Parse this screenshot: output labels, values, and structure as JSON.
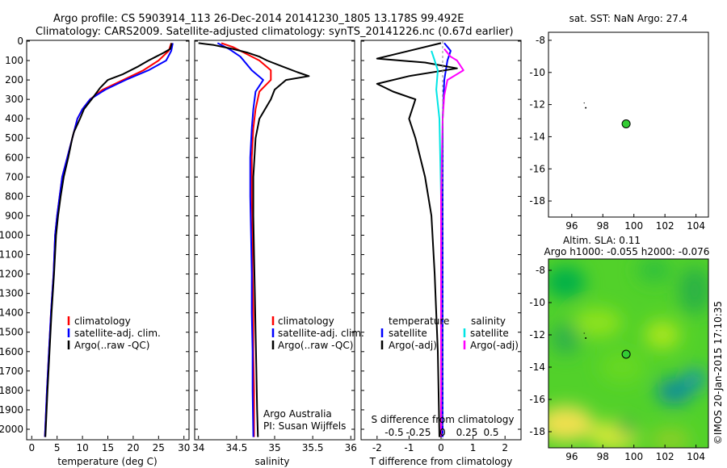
{
  "header": {
    "line1": "Argo profile: CS 5903914_113 26-Dec-2014 20141230_1805 13.178S 99.492E",
    "line2": "Climatology: CARS2009. Satellite-adjusted climatology: synTS_20141226.nc (0.67d earlier)"
  },
  "depth_ticks": [
    "0",
    "100",
    "200",
    "300",
    "400",
    "500",
    "600",
    "700",
    "800",
    "900",
    "1000",
    "1100",
    "1200",
    "1300",
    "1400",
    "1500",
    "1600",
    "1700",
    "1800",
    "1900",
    "2000"
  ],
  "colors": {
    "climatology": "#ff0000",
    "satellite": "#0000ff",
    "argo": "#000000",
    "sat_salinity": "#00e5e5",
    "argo_salinity": "#ff00ff",
    "map_marker": "#33cc33"
  },
  "panels": {
    "temperature": {
      "xlabel": "temperature (deg C)",
      "xticks": [
        "0",
        "5",
        "10",
        "15",
        "20",
        "25",
        "30"
      ],
      "legend": [
        "climatology",
        "satellite-adj. clim.",
        "Argo(..raw -QC)"
      ]
    },
    "salinity": {
      "xlabel": "salinity",
      "xticks": [
        "34",
        "34.5",
        "35",
        "35.5",
        "36"
      ],
      "legend": [
        "climatology",
        "satellite-adj. clim.",
        "Argo(..raw -QC)"
      ],
      "note1": "Argo Australia",
      "note2": "PI: Susan Wijffels"
    },
    "difference": {
      "xlabel": "T difference from climatology",
      "xticks": [
        "-2",
        "-1",
        "0",
        "1",
        "2"
      ],
      "top_label": "S difference from climatology",
      "top_ticks": [
        "-0.5",
        "-0.25",
        "0",
        "0.25",
        "0.5"
      ],
      "legend_t_head": "temperature",
      "legend_s_head": "salinity",
      "legend_t": [
        "satellite",
        "Argo(-adj)"
      ],
      "legend_s": [
        "satellite",
        "Argo(-adj)"
      ]
    },
    "map_sst": {
      "title": "sat. SST: NaN Argo: 27.4",
      "xticks": [
        "96",
        "98",
        "100",
        "102",
        "104"
      ],
      "yticks": [
        "-8",
        "-10",
        "-12",
        "-14",
        "-16",
        "-18"
      ]
    },
    "map_sla": {
      "title1": "Altim. SLA: 0.11",
      "title2": "Argo h1000: -0.055 h2000: -0.076",
      "xticks": [
        "96",
        "98",
        "100",
        "102",
        "104"
      ],
      "yticks": [
        "-8",
        "-10",
        "-12",
        "-14",
        "-16",
        "-18"
      ]
    }
  },
  "credit": "©IMOS 20-Jan-2015 17:10:35",
  "chart_data": [
    {
      "type": "line",
      "title": "temperature",
      "xlabel": "temperature (deg C)",
      "ylabel": "",
      "xlim": [
        -1,
        31
      ],
      "ylim": [
        2050,
        0
      ],
      "series": [
        {
          "name": "climatology",
          "color": "#ff0000",
          "points": [
            [
              27.5,
              10
            ],
            [
              27,
              50
            ],
            [
              25,
              100
            ],
            [
              22,
              150
            ],
            [
              18,
              200
            ],
            [
              14,
              250
            ],
            [
              11.5,
              300
            ],
            [
              10,
              350
            ],
            [
              9,
              400
            ],
            [
              8,
              500
            ],
            [
              7,
              600
            ],
            [
              6,
              700
            ],
            [
              5.5,
              800
            ],
            [
              5,
              900
            ],
            [
              4.6,
              1000
            ],
            [
              4.3,
              1200
            ],
            [
              3.8,
              1400
            ],
            [
              3.4,
              1600
            ],
            [
              3,
              1800
            ],
            [
              2.6,
              2040
            ]
          ]
        },
        {
          "name": "satellite-adj. clim.",
          "color": "#0000ff",
          "points": [
            [
              27.8,
              10
            ],
            [
              27.5,
              50
            ],
            [
              26.5,
              100
            ],
            [
              23,
              150
            ],
            [
              18.5,
              200
            ],
            [
              14.5,
              250
            ],
            [
              11.5,
              300
            ],
            [
              10,
              350
            ],
            [
              9,
              400
            ],
            [
              8,
              500
            ],
            [
              7,
              600
            ],
            [
              6,
              700
            ],
            [
              5.5,
              800
            ],
            [
              5,
              900
            ],
            [
              4.6,
              1000
            ],
            [
              4.3,
              1200
            ],
            [
              3.8,
              1400
            ],
            [
              3.4,
              1600
            ],
            [
              3,
              1800
            ],
            [
              2.6,
              2040
            ]
          ]
        },
        {
          "name": "Argo(..raw -QC)",
          "color": "#000000",
          "points": [
            [
              27.6,
              10
            ],
            [
              27.3,
              40
            ],
            [
              26,
              60
            ],
            [
              24.5,
              80
            ],
            [
              23,
              100
            ],
            [
              21,
              130
            ],
            [
              18,
              170
            ],
            [
              15,
              200
            ],
            [
              13.5,
              240
            ],
            [
              11.8,
              300
            ],
            [
              10.3,
              350
            ],
            [
              9.5,
              400
            ],
            [
              8.3,
              470
            ],
            [
              8,
              500
            ],
            [
              7.2,
              600
            ],
            [
              6.3,
              700
            ],
            [
              5.7,
              800
            ],
            [
              5.2,
              900
            ],
            [
              4.8,
              1000
            ],
            [
              4.4,
              1200
            ],
            [
              3.9,
              1400
            ],
            [
              3.5,
              1600
            ],
            [
              3.1,
              1800
            ],
            [
              2.7,
              2040
            ]
          ]
        }
      ]
    },
    {
      "type": "line",
      "title": "salinity",
      "xlabel": "salinity",
      "ylabel": "",
      "xlim": [
        33.95,
        36.05
      ],
      "ylim": [
        2050,
        0
      ],
      "series": [
        {
          "name": "climatology",
          "color": "#ff0000",
          "points": [
            [
              34.3,
              10
            ],
            [
              34.45,
              30
            ],
            [
              34.6,
              60
            ],
            [
              34.8,
              100
            ],
            [
              34.95,
              150
            ],
            [
              34.95,
              200
            ],
            [
              34.8,
              260
            ],
            [
              34.75,
              350
            ],
            [
              34.72,
              450
            ],
            [
              34.7,
              600
            ],
            [
              34.7,
              800
            ],
            [
              34.71,
              1000
            ],
            [
              34.71,
              1200
            ],
            [
              34.72,
              1400
            ],
            [
              34.72,
              1600
            ],
            [
              34.73,
              1800
            ],
            [
              34.73,
              2040
            ]
          ]
        },
        {
          "name": "satellite-adj. clim.",
          "color": "#0000ff",
          "points": [
            [
              34.25,
              10
            ],
            [
              34.4,
              40
            ],
            [
              34.55,
              80
            ],
            [
              34.7,
              150
            ],
            [
              34.85,
              200
            ],
            [
              34.75,
              260
            ],
            [
              34.72,
              350
            ],
            [
              34.7,
              450
            ],
            [
              34.68,
              600
            ],
            [
              34.68,
              800
            ],
            [
              34.69,
              1000
            ],
            [
              34.7,
              1200
            ],
            [
              34.7,
              1400
            ],
            [
              34.71,
              1600
            ],
            [
              34.71,
              1800
            ],
            [
              34.72,
              2040
            ]
          ]
        },
        {
          "name": "Argo(..raw -QC)",
          "color": "#000000",
          "points": [
            [
              34.0,
              10
            ],
            [
              34.2,
              20
            ],
            [
              34.45,
              40
            ],
            [
              34.65,
              60
            ],
            [
              34.8,
              80
            ],
            [
              34.9,
              100
            ],
            [
              35.1,
              130
            ],
            [
              35.3,
              160
            ],
            [
              35.45,
              180
            ],
            [
              35.15,
              200
            ],
            [
              35.0,
              250
            ],
            [
              34.95,
              300
            ],
            [
              34.8,
              400
            ],
            [
              34.75,
              500
            ],
            [
              34.72,
              700
            ],
            [
              34.72,
              900
            ],
            [
              34.73,
              1100
            ],
            [
              34.74,
              1300
            ],
            [
              34.75,
              1500
            ],
            [
              34.76,
              1700
            ],
            [
              34.77,
              1900
            ],
            [
              34.78,
              2040
            ]
          ]
        }
      ]
    },
    {
      "type": "line",
      "title": "difference from climatology",
      "xlabel": "T difference from climatology",
      "ylabel": "",
      "xlim": [
        -2.5,
        2.5
      ],
      "ylim": [
        2050,
        0
      ],
      "series": [
        {
          "name": "temperature satellite",
          "color": "#0000ff",
          "points": [
            [
              0.1,
              10
            ],
            [
              0.3,
              50
            ],
            [
              0.2,
              100
            ],
            [
              0.1,
              200
            ],
            [
              0.05,
              400
            ],
            [
              0.05,
              800
            ],
            [
              0.05,
              1200
            ],
            [
              0.05,
              1600
            ],
            [
              0.05,
              2040
            ]
          ]
        },
        {
          "name": "temperature Argo(-adj)",
          "color": "#000000",
          "points": [
            [
              0,
              10
            ],
            [
              -1.5,
              70
            ],
            [
              -2,
              90
            ],
            [
              -0.5,
              110
            ],
            [
              0.5,
              140
            ],
            [
              -1,
              180
            ],
            [
              -2,
              220
            ],
            [
              -1.5,
              260
            ],
            [
              -0.8,
              300
            ],
            [
              -1,
              400
            ],
            [
              -0.8,
              500
            ],
            [
              -0.5,
              700
            ],
            [
              -0.3,
              900
            ],
            [
              -0.2,
              1200
            ],
            [
              -0.1,
              1600
            ],
            [
              -0.05,
              2040
            ]
          ]
        },
        {
          "name": "salinity satellite",
          "color": "#00e5e5",
          "points": [
            [
              -0.3,
              50
            ],
            [
              -0.2,
              100
            ],
            [
              -0.1,
              150
            ],
            [
              -0.15,
              250
            ],
            [
              -0.05,
              400
            ],
            [
              0,
              800
            ],
            [
              0,
              1200
            ],
            [
              0,
              1600
            ],
            [
              0,
              2040
            ]
          ]
        },
        {
          "name": "salinity Argo(-adj)",
          "color": "#ff00ff",
          "points": [
            [
              0.1,
              40
            ],
            [
              0.3,
              80
            ],
            [
              0.5,
              100
            ],
            [
              0.7,
              150
            ],
            [
              0.2,
              200
            ],
            [
              0.1,
              280
            ],
            [
              0.05,
              400
            ],
            [
              0,
              800
            ],
            [
              0,
              1200
            ],
            [
              0,
              1600
            ],
            [
              0,
              2040
            ]
          ]
        }
      ]
    },
    {
      "type": "scatter",
      "title": "sat. SST: NaN Argo: 27.4",
      "xlabel": "",
      "ylabel": "",
      "xlim": [
        94.5,
        104.8
      ],
      "ylim": [
        -19.0,
        -7.5
      ],
      "series": [
        {
          "name": "",
          "color": "#33cc33",
          "points": [
            [
              99.5,
              -13.2
            ]
          ]
        }
      ]
    },
    {
      "type": "heatmap",
      "title": "Altim. SLA: 0.11",
      "xlabel": "",
      "ylabel": "",
      "xlim": [
        94.5,
        104.8
      ],
      "ylim": [
        -19.0,
        -7.3
      ],
      "series": [
        {
          "name": "",
          "color": "#33cc33",
          "points": [
            [
              99.5,
              -13.2
            ]
          ]
        }
      ]
    }
  ]
}
